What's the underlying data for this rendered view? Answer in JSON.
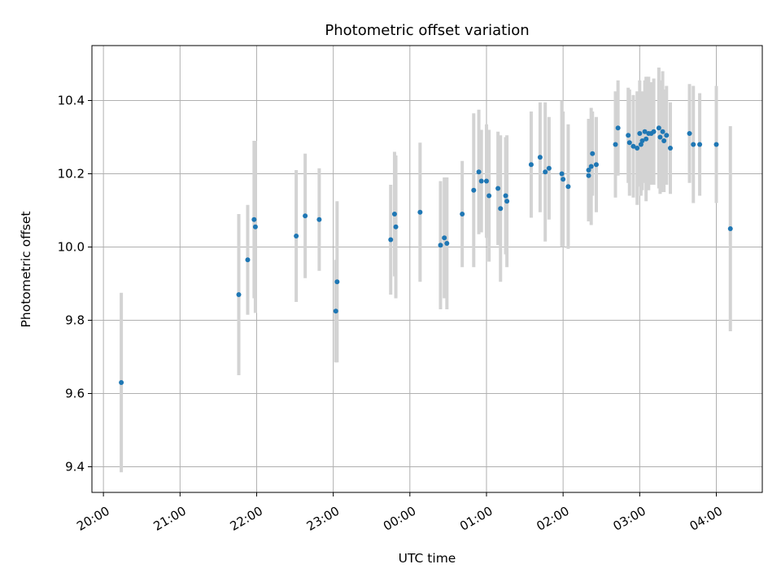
{
  "chart_data": {
    "type": "scatter",
    "title": "Photometric offset variation",
    "xlabel": "UTC time",
    "ylabel": "Photometric offset",
    "x_unit": "time of night (UTC), spanning midnight",
    "xlim": [
      "19:51",
      "04:36"
    ],
    "ylim": [
      9.33,
      10.55
    ],
    "grid": true,
    "x_ticks": [
      "20:00",
      "21:00",
      "22:00",
      "23:00",
      "00:00",
      "01:00",
      "02:00",
      "03:00",
      "04:00"
    ],
    "y_ticks": [
      "9.4",
      "9.6",
      "9.8",
      "10.0",
      "10.2",
      "10.4"
    ],
    "colors": {
      "points": "#1f77b4",
      "error_bars": "#d3d3d3",
      "grid": "#b0b0b0"
    },
    "series": [
      {
        "x": [
          "20:14",
          "21:46",
          "21:53",
          "21:58",
          "21:59",
          "22:31",
          "22:38",
          "22:49",
          "23:02",
          "23:03",
          "23:45",
          "23:48",
          "23:49",
          "00:08",
          "00:24",
          "00:27",
          "00:29",
          "00:41",
          "00:50",
          "00:54",
          "00:56",
          "01:00",
          "01:02",
          "01:09",
          "01:11",
          "01:15",
          "01:16",
          "01:35",
          "01:42",
          "01:46",
          "01:49",
          "01:59",
          "02:00",
          "02:04",
          "02:20",
          "02:20",
          "02:22",
          "02:23",
          "02:26",
          "02:41",
          "02:43",
          "02:51",
          "02:52",
          "02:55",
          "02:58",
          "03:00",
          "03:01",
          "03:02",
          "03:04",
          "03:05",
          "03:07",
          "03:09",
          "03:11",
          "03:15",
          "03:16",
          "03:18",
          "03:19",
          "03:21",
          "03:24",
          "03:39",
          "03:42",
          "03:47",
          "04:00",
          "04:11"
        ],
        "y": [
          9.63,
          9.87,
          9.965,
          10.075,
          10.055,
          10.03,
          10.085,
          10.075,
          9.825,
          9.905,
          10.02,
          10.09,
          10.055,
          10.095,
          10.005,
          10.025,
          10.01,
          10.09,
          10.155,
          10.205,
          10.18,
          10.18,
          10.14,
          10.16,
          10.105,
          10.14,
          10.125,
          10.225,
          10.245,
          10.205,
          10.215,
          10.2,
          10.185,
          10.165,
          10.21,
          10.195,
          10.22,
          10.255,
          10.225,
          10.28,
          10.325,
          10.305,
          10.285,
          10.275,
          10.27,
          10.31,
          10.28,
          10.29,
          10.315,
          10.295,
          10.31,
          10.31,
          10.315,
          10.325,
          10.3,
          10.315,
          10.29,
          10.305,
          10.27,
          10.31,
          10.28,
          10.28,
          10.28,
          10.05
        ],
        "yerr": [
          0.245,
          0.22,
          0.15,
          0.215,
          0.235,
          0.18,
          0.17,
          0.14,
          0.14,
          0.22,
          0.15,
          0.17,
          0.195,
          0.19,
          0.175,
          0.165,
          0.18,
          0.145,
          0.21,
          0.17,
          0.14,
          0.155,
          0.18,
          0.155,
          0.2,
          0.16,
          0.18,
          0.145,
          0.15,
          0.19,
          0.14,
          0.2,
          0.185,
          0.17,
          0.14,
          0.125,
          0.16,
          0.115,
          0.13,
          0.145,
          0.13,
          0.13,
          0.145,
          0.14,
          0.155,
          0.145,
          0.14,
          0.135,
          0.14,
          0.17,
          0.155,
          0.14,
          0.145,
          0.165,
          0.155,
          0.165,
          0.14,
          0.135,
          0.125,
          0.135,
          0.16,
          0.14,
          0.16,
          0.28
        ]
      }
    ]
  }
}
